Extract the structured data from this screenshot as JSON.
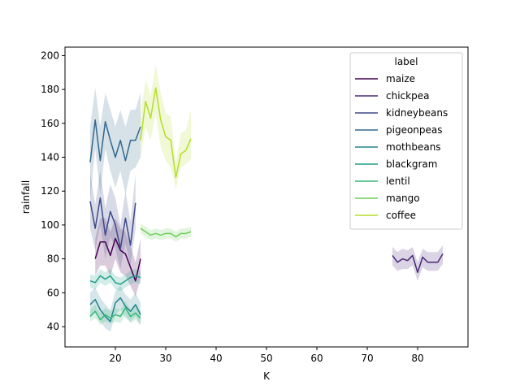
{
  "chart_data": {
    "type": "line",
    "title": "",
    "xlabel": "K",
    "ylabel": "rainfall",
    "xlim": [
      10,
      90
    ],
    "ylim": [
      28,
      205
    ],
    "xticks": [
      20,
      30,
      40,
      50,
      60,
      70,
      80
    ],
    "yticks": [
      40,
      60,
      80,
      100,
      120,
      140,
      160,
      180,
      200
    ],
    "grid": false,
    "legend": {
      "title": "label",
      "placement": "top-right"
    },
    "series": [
      {
        "name": "maize",
        "color": "#440154",
        "x": [
          16,
          17,
          18,
          19,
          20,
          21,
          22,
          23,
          24,
          25
        ],
        "y": [
          80,
          90,
          90,
          82,
          92,
          85,
          83,
          75,
          67,
          80
        ],
        "lower": [
          70,
          76,
          76,
          70,
          80,
          72,
          70,
          64,
          58,
          68
        ],
        "upper": [
          92,
          104,
          104,
          96,
          104,
          98,
          96,
          88,
          78,
          92
        ]
      },
      {
        "name": "chickpea",
        "color": "#482878",
        "x": [
          75,
          76,
          77,
          78,
          79,
          80,
          81,
          82,
          83,
          84,
          85
        ],
        "y": [
          82,
          78,
          80,
          79,
          82,
          72,
          81,
          78,
          78,
          78,
          83
        ],
        "lower": [
          76,
          73,
          74,
          74,
          76,
          67,
          75,
          73,
          73,
          73,
          77
        ],
        "upper": [
          87,
          84,
          86,
          85,
          87,
          78,
          86,
          84,
          84,
          84,
          88
        ]
      },
      {
        "name": "kidneybeans",
        "color": "#3e4989",
        "x": [
          15,
          16,
          17,
          18,
          19,
          20,
          21,
          22,
          23,
          24
        ],
        "y": [
          114,
          98,
          116,
          94,
          108,
          100,
          86,
          104,
          88,
          113
        ],
        "lower": [
          98,
          85,
          100,
          80,
          93,
          86,
          74,
          89,
          76,
          98
        ],
        "upper": [
          131,
          112,
          132,
          110,
          124,
          116,
          100,
          120,
          102,
          130
        ]
      },
      {
        "name": "pigeonpeas",
        "color": "#31688e",
        "x": [
          15,
          16,
          17,
          18,
          19,
          20,
          21,
          22,
          23,
          24,
          25
        ],
        "y": [
          137,
          162,
          138,
          161,
          150,
          140,
          150,
          138,
          150,
          150,
          158
        ],
        "lower": [
          115,
          145,
          118,
          145,
          132,
          122,
          132,
          118,
          132,
          134,
          140
        ],
        "upper": [
          158,
          181,
          158,
          178,
          168,
          158,
          168,
          158,
          168,
          168,
          178
        ]
      },
      {
        "name": "mothbeans",
        "color": "#26828e",
        "x": [
          15,
          16,
          17,
          18,
          19,
          20,
          21,
          22,
          23,
          24,
          25
        ],
        "y": [
          53,
          56,
          50,
          46,
          43,
          54,
          57,
          52,
          49,
          53,
          47
        ],
        "lower": [
          46,
          49,
          43,
          39,
          37,
          47,
          50,
          45,
          43,
          46,
          41
        ],
        "upper": [
          60,
          63,
          57,
          53,
          50,
          61,
          64,
          59,
          56,
          60,
          54
        ]
      },
      {
        "name": "blackgram",
        "color": "#1f9e89",
        "x": [
          15,
          16,
          17,
          18,
          19,
          20,
          21,
          22,
          23,
          24,
          25
        ],
        "y": [
          67,
          66,
          70,
          68,
          70,
          66,
          65,
          67,
          69,
          70,
          69
        ],
        "lower": [
          63,
          62,
          66,
          64,
          66,
          62,
          61,
          63,
          65,
          66,
          65
        ],
        "upper": [
          71,
          70,
          74,
          72,
          74,
          70,
          69,
          71,
          73,
          74,
          73
        ]
      },
      {
        "name": "lentil",
        "color": "#35b779",
        "x": [
          15,
          16,
          17,
          18,
          19,
          20,
          21,
          22,
          23,
          24,
          25
        ],
        "y": [
          46,
          49,
          44,
          47,
          45,
          47,
          46,
          51,
          46,
          48,
          45
        ],
        "lower": [
          43,
          45,
          41,
          43,
          42,
          43,
          42,
          47,
          42,
          44,
          41
        ],
        "upper": [
          50,
          53,
          48,
          51,
          49,
          51,
          50,
          55,
          50,
          52,
          49
        ]
      },
      {
        "name": "mango",
        "color": "#6ece58",
        "x": [
          25,
          26,
          27,
          28,
          29,
          30,
          31,
          32,
          33,
          34,
          35
        ],
        "y": [
          98,
          96,
          94,
          95,
          94,
          95,
          95,
          93,
          95,
          95,
          96
        ],
        "lower": [
          95,
          93,
          91,
          92,
          91,
          92,
          92,
          90,
          92,
          92,
          93
        ],
        "upper": [
          101,
          99,
          97,
          98,
          97,
          98,
          98,
          96,
          98,
          98,
          99
        ]
      },
      {
        "name": "coffee",
        "color": "#b5de2b",
        "x": [
          25,
          26,
          27,
          28,
          29,
          30,
          31,
          32,
          33,
          34,
          35
        ],
        "y": [
          150,
          173,
          163,
          181,
          162,
          152,
          150,
          128,
          142,
          144,
          151
        ],
        "lower": [
          140,
          158,
          150,
          166,
          146,
          138,
          134,
          121,
          134,
          136,
          139
        ],
        "upper": [
          166,
          186,
          176,
          195,
          178,
          166,
          164,
          137,
          154,
          156,
          168
        ]
      }
    ]
  }
}
